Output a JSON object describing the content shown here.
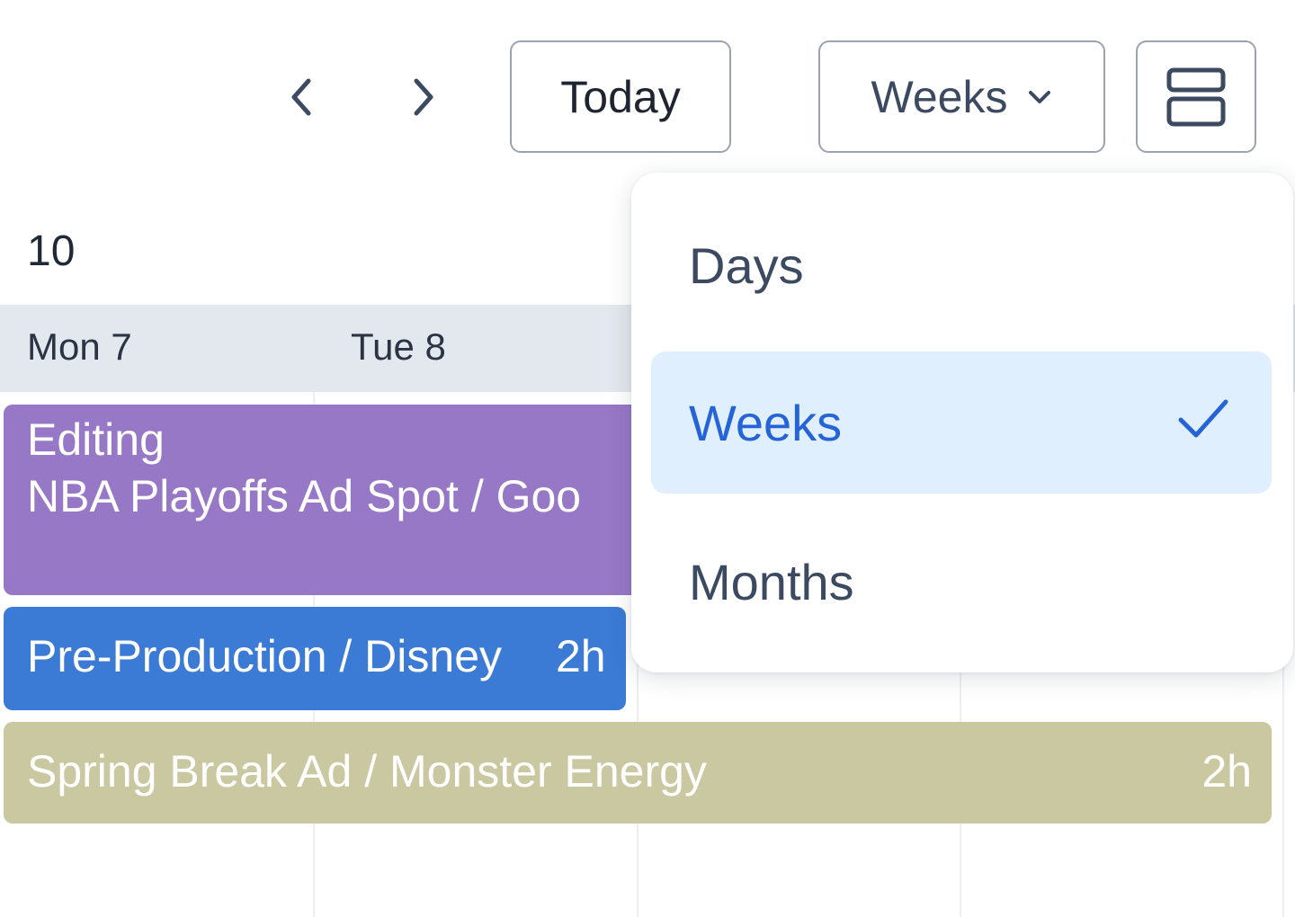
{
  "toolbar": {
    "today_label": "Today",
    "view_selected": "Weeks"
  },
  "calendar": {
    "week_number": "10",
    "days": [
      {
        "label": "Mon 7"
      },
      {
        "label": "Tue 8"
      }
    ],
    "events": [
      {
        "line1": "Editing",
        "line2": "NBA Playoffs Ad Spot / Goo",
        "color": "#9778c6"
      },
      {
        "title": "Pre-Production / Disney",
        "duration": "2h",
        "color": "#3b7bd5"
      },
      {
        "title": "Spring Break Ad / Monster Energy",
        "duration": "2h",
        "color": "#cac8a1"
      }
    ]
  },
  "view_menu": {
    "items": [
      {
        "label": "Days",
        "selected": false
      },
      {
        "label": "Weeks",
        "selected": true
      },
      {
        "label": "Months",
        "selected": false
      }
    ],
    "selected_color": "#2563d6",
    "selected_bg": "#e0effd"
  }
}
